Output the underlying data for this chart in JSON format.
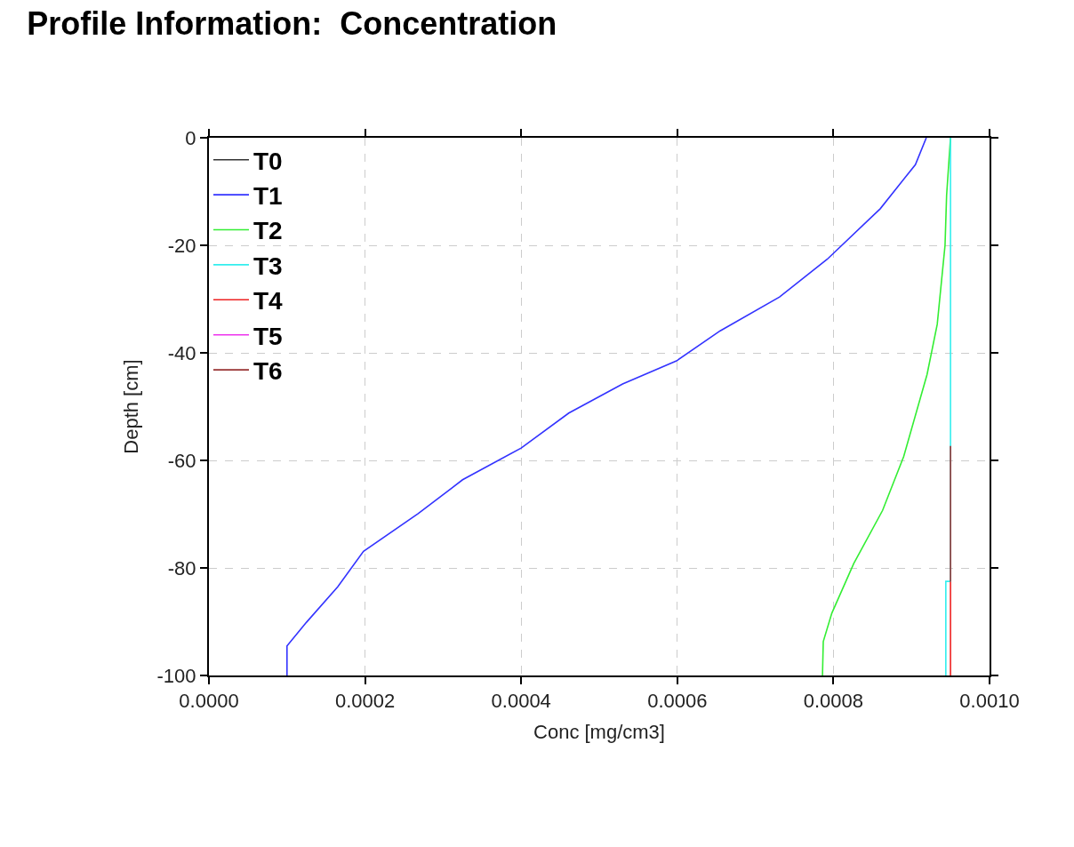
{
  "chart_data": {
    "type": "line",
    "title": "Profile Information:  Concentration",
    "xlabel": "Conc [mg/cm3]",
    "ylabel": "Depth [cm]",
    "xlim": [
      0,
      0.001
    ],
    "xticks": [
      {
        "value": 0,
        "label": "0.0000"
      },
      {
        "value": 0.0002,
        "label": "0.0002"
      },
      {
        "value": 0.0004,
        "label": "0.0004"
      },
      {
        "value": 0.0006,
        "label": "0.0006"
      },
      {
        "value": 0.0008,
        "label": "0.0008"
      },
      {
        "value": 0.001,
        "label": "0.0010"
      }
    ],
    "ylim": [
      -100,
      0
    ],
    "yticks": [
      -100,
      -80,
      -60,
      -40,
      -20,
      0
    ],
    "grid": true,
    "legend": "top left",
    "line_style": "solid",
    "marker": "none",
    "series": [
      {
        "name": "T0",
        "color": "#333333",
        "x": [
          null
        ],
        "values": [
          null
        ]
      },
      {
        "name": "T1",
        "color": "#3333ff",
        "x": [
          0.000919,
          0.000905,
          0.00086,
          0.000792,
          0.000731,
          0.000655,
          0.000599,
          0.00053,
          0.000461,
          0.0004,
          0.000325,
          0.000268,
          0.000198,
          0.000165,
          0.000125,
          0.0001,
          0.0001
        ],
        "values": [
          0,
          -5,
          -13.2,
          -22.6,
          -29.6,
          -35.9,
          -41.5,
          -45.8,
          -51.2,
          -57.7,
          -63.6,
          -69.9,
          -76.9,
          -83.5,
          -90.1,
          -94.5,
          -100
        ]
      },
      {
        "name": "T2",
        "color": "#33ee33",
        "x": [
          0.00095,
          0.000945,
          0.000943,
          0.000933,
          0.00092,
          0.00089,
          0.000863,
          0.000826,
          0.000798,
          0.000787,
          0.000786
        ],
        "values": [
          0,
          -10.7,
          -20,
          -34.7,
          -44,
          -59.3,
          -69.3,
          -79.2,
          -88.4,
          -93.7,
          -100
        ]
      },
      {
        "name": "T3",
        "color": "#33eeee",
        "x": [
          0.00095,
          0.00095,
          0.000944,
          0.000944
        ],
        "values": [
          0,
          -82.5,
          -82.5,
          -100
        ]
      },
      {
        "name": "T4",
        "color": "#ee2222",
        "x": [
          0.00095,
          0.00095
        ],
        "values": [
          -82.5,
          -100
        ]
      },
      {
        "name": "T5",
        "color": "#ee33ee",
        "x": [
          null
        ],
        "values": [
          null
        ]
      },
      {
        "name": "T6",
        "color": "#993333",
        "x": [
          0.00095,
          0.00095
        ],
        "values": [
          -57.3,
          -82.5
        ]
      }
    ]
  }
}
